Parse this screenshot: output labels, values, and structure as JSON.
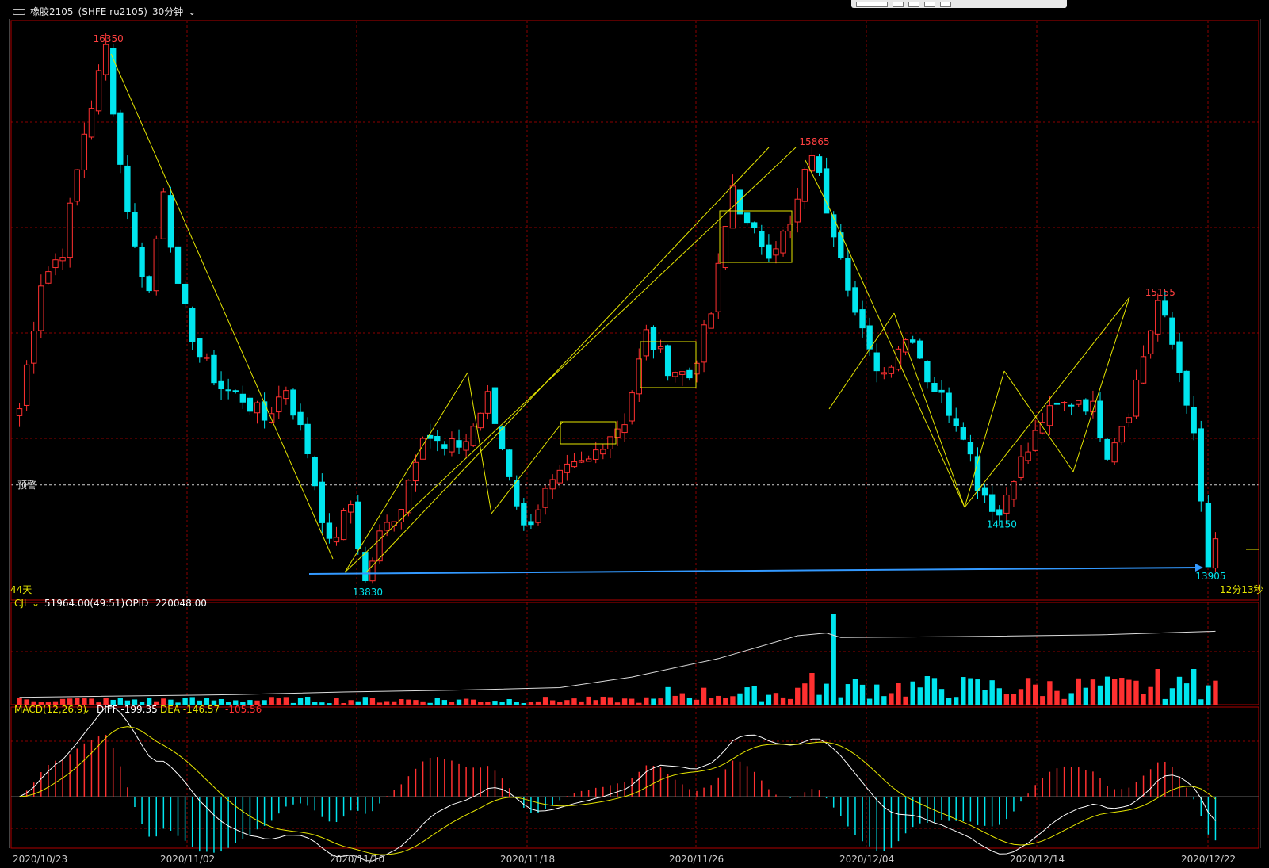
{
  "window": {
    "symbol": "橡胶2105",
    "contract": "(SHFE ru2105)",
    "period": "30分钟"
  },
  "colors": {
    "up": "#ff3030",
    "down": "#00e5ee",
    "grid": "#8b0000",
    "annot": "#e6e600",
    "support": "#3399ff",
    "diff": "#ffffff",
    "dea": "#e6e600",
    "opid": "#dcdcdc"
  },
  "chart_data": {
    "type": "candlestick",
    "price_ylim": [
      13830,
      16350
    ],
    "alert_label": "预警",
    "alert_price": 14290,
    "day_count": "44天",
    "countdown": "12分13秒",
    "x_dates": [
      "2020/10/23",
      "2020/11/02",
      "2020/11/10",
      "2020/11/18",
      "2020/11/26",
      "2020/12/04",
      "2020/12/14",
      "2020/12/22"
    ],
    "high_low_labels": [
      {
        "text": "16350",
        "bar": 12,
        "kind": "high"
      },
      {
        "text": "13830",
        "bar": 48,
        "kind": "low"
      },
      {
        "text": "15865",
        "bar": 110,
        "kind": "high"
      },
      {
        "text": "14150",
        "bar": 136,
        "kind": "low"
      },
      {
        "text": "15155",
        "bar": 158,
        "kind": "high"
      },
      {
        "text": "13905",
        "bar": 165,
        "kind": "low"
      }
    ],
    "close_path": [
      [
        0,
        14650
      ],
      [
        3,
        15250
      ],
      [
        6,
        15400
      ],
      [
        9,
        15950
      ],
      [
        12,
        16350
      ],
      [
        14,
        15800
      ],
      [
        16,
        15400
      ],
      [
        18,
        15200
      ],
      [
        20,
        15700
      ],
      [
        22,
        15200
      ],
      [
        25,
        14900
      ],
      [
        28,
        14750
      ],
      [
        31,
        14700
      ],
      [
        34,
        14600
      ],
      [
        37,
        14750
      ],
      [
        40,
        14450
      ],
      [
        43,
        14000
      ],
      [
        46,
        14200
      ],
      [
        48,
        13830
      ],
      [
        50,
        14050
      ],
      [
        53,
        14200
      ],
      [
        56,
        14550
      ],
      [
        59,
        14450
      ],
      [
        62,
        14500
      ],
      [
        65,
        14700
      ],
      [
        68,
        14350
      ],
      [
        70,
        14080
      ],
      [
        73,
        14250
      ],
      [
        76,
        14350
      ],
      [
        79,
        14400
      ],
      [
        81,
        14500
      ],
      [
        84,
        14600
      ],
      [
        87,
        15000
      ],
      [
        90,
        14850
      ],
      [
        93,
        14800
      ],
      [
        96,
        15100
      ],
      [
        99,
        15700
      ],
      [
        101,
        15500
      ],
      [
        104,
        15400
      ],
      [
        107,
        15500
      ],
      [
        110,
        15865
      ],
      [
        112,
        15600
      ],
      [
        114,
        15400
      ],
      [
        116,
        15100
      ],
      [
        118,
        14900
      ],
      [
        120,
        14820
      ],
      [
        122,
        14950
      ],
      [
        124,
        15000
      ],
      [
        126,
        14800
      ],
      [
        128,
        14700
      ],
      [
        131,
        14550
      ],
      [
        133,
        14300
      ],
      [
        136,
        14150
      ],
      [
        138,
        14350
      ],
      [
        140,
        14450
      ],
      [
        142,
        14600
      ],
      [
        144,
        14650
      ],
      [
        147,
        14700
      ],
      [
        149,
        14650
      ],
      [
        151,
        14450
      ],
      [
        154,
        14650
      ],
      [
        156,
        14900
      ],
      [
        158,
        15155
      ],
      [
        160,
        14950
      ],
      [
        162,
        14700
      ],
      [
        163,
        14500
      ],
      [
        164,
        14200
      ],
      [
        165,
        13905
      ],
      [
        166,
        14000
      ]
    ],
    "cjl": {
      "label": "CJL",
      "value": "51964.00(49:51)",
      "opid_label": "OPID",
      "opid_value": "220048.00"
    },
    "opid_path": [
      [
        0,
        0.03
      ],
      [
        30,
        0.06
      ],
      [
        45,
        0.09
      ],
      [
        60,
        0.11
      ],
      [
        75,
        0.14
      ],
      [
        85,
        0.26
      ],
      [
        97,
        0.47
      ],
      [
        108,
        0.73
      ],
      [
        112,
        0.76
      ],
      [
        114,
        0.71
      ],
      [
        130,
        0.72
      ],
      [
        150,
        0.74
      ],
      [
        166,
        0.78
      ]
    ],
    "macd": {
      "label": "MACD(12,26,9)",
      "diff_text": "DIFF -199.35",
      "dea_text": "DEA -146.57",
      "macd_text": "-105.56"
    },
    "macd_ylim": [
      -240,
      330
    ]
  }
}
